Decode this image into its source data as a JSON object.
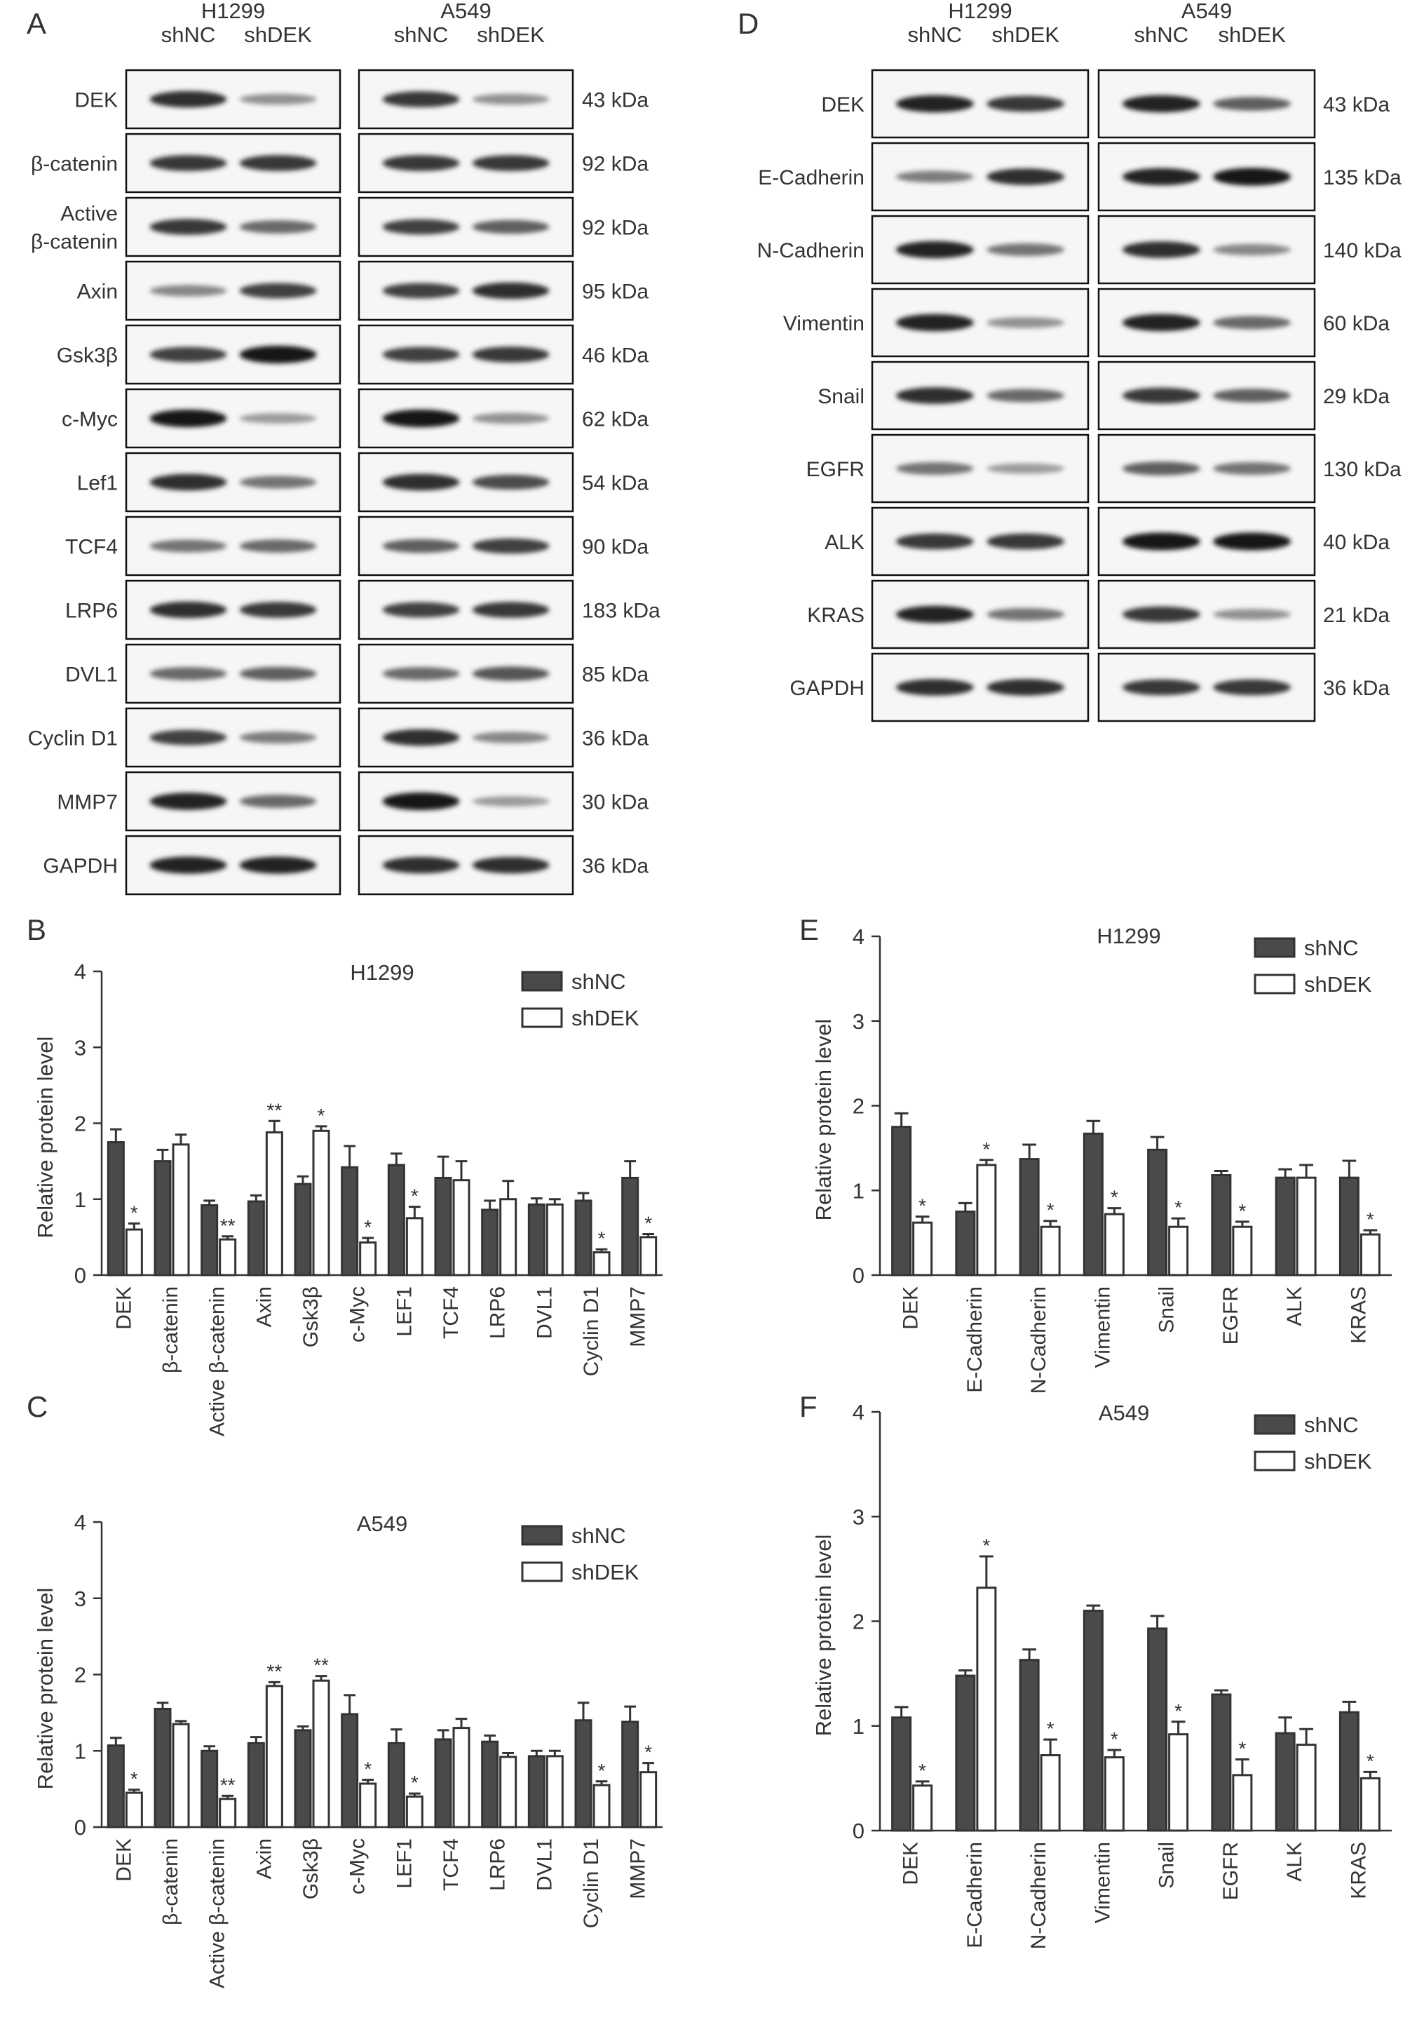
{
  "panel_letters": [
    "A",
    "B",
    "C",
    "D",
    "E",
    "F"
  ],
  "blot_A": {
    "cell_lines": [
      "H1299",
      "A549"
    ],
    "lanes": [
      "shNC",
      "shDEK"
    ],
    "proteins": [
      {
        "label": "DEK",
        "mw": "43 kDa",
        "bands": [
          0.85,
          0.35,
          0.8,
          0.35
        ]
      },
      {
        "label": "β-catenin",
        "mw": "92 kDa",
        "bands": [
          0.8,
          0.8,
          0.8,
          0.8
        ]
      },
      {
        "label": "Active\nβ-catenin",
        "mw": "92 kDa",
        "bands": [
          0.8,
          0.55,
          0.75,
          0.6
        ]
      },
      {
        "label": "Axin",
        "mw": "95 kDa",
        "bands": [
          0.4,
          0.75,
          0.75,
          0.85
        ]
      },
      {
        "label": "Gsk3β",
        "mw": "46 kDa",
        "bands": [
          0.75,
          0.95,
          0.75,
          0.8
        ]
      },
      {
        "label": "c-Myc",
        "mw": "62 kDa",
        "bands": [
          0.95,
          0.3,
          0.95,
          0.35
        ]
      },
      {
        "label": "Lef1",
        "mw": "54 kDa",
        "bands": [
          0.85,
          0.5,
          0.85,
          0.7
        ]
      },
      {
        "label": "TCF4",
        "mw": "90 kDa",
        "bands": [
          0.5,
          0.55,
          0.6,
          0.75
        ]
      },
      {
        "label": "LRP6",
        "mw": "183 kDa",
        "bands": [
          0.85,
          0.8,
          0.75,
          0.8
        ]
      },
      {
        "label": "DVL1",
        "mw": "85 kDa",
        "bands": [
          0.55,
          0.6,
          0.55,
          0.65
        ]
      },
      {
        "label": "Cyclin D1",
        "mw": "36 kDa",
        "bands": [
          0.75,
          0.45,
          0.85,
          0.4
        ]
      },
      {
        "label": "MMP7",
        "mw": "30 kDa",
        "bands": [
          0.9,
          0.55,
          0.95,
          0.3
        ]
      },
      {
        "label": "GAPDH",
        "mw": "36 kDa",
        "bands": [
          0.9,
          0.9,
          0.85,
          0.85
        ]
      }
    ]
  },
  "blot_D": {
    "cell_lines": [
      "H1299",
      "A549"
    ],
    "lanes": [
      "shNC",
      "shDEK"
    ],
    "proteins": [
      {
        "label": "DEK",
        "mw": "43 kDa",
        "bands": [
          0.9,
          0.8,
          0.9,
          0.6
        ]
      },
      {
        "label": "E-Cadherin",
        "mw": "135 kDa",
        "bands": [
          0.45,
          0.85,
          0.9,
          0.95
        ]
      },
      {
        "label": "N-Cadherin",
        "mw": "140 kDa",
        "bands": [
          0.9,
          0.5,
          0.85,
          0.4
        ]
      },
      {
        "label": "Vimentin",
        "mw": "60 kDa",
        "bands": [
          0.9,
          0.35,
          0.9,
          0.55
        ]
      },
      {
        "label": "Snail",
        "mw": "29 kDa",
        "bands": [
          0.85,
          0.55,
          0.8,
          0.6
        ]
      },
      {
        "label": "EGFR",
        "mw": "130 kDa",
        "bands": [
          0.5,
          0.3,
          0.6,
          0.5
        ]
      },
      {
        "label": "ALK",
        "mw": "40 kDa",
        "bands": [
          0.8,
          0.8,
          0.95,
          0.95
        ]
      },
      {
        "label": "KRAS",
        "mw": "21 kDa",
        "bands": [
          0.9,
          0.5,
          0.8,
          0.35
        ]
      },
      {
        "label": "GAPDH",
        "mw": "36 kDa",
        "bands": [
          0.85,
          0.85,
          0.8,
          0.8
        ]
      }
    ]
  },
  "legend": [
    "shNC",
    "shDEK"
  ],
  "colors": {
    "shNC": "#4a4a4a",
    "shDEK": "#ffffff",
    "stroke": "#333333"
  },
  "chart_data": [
    {
      "panel": "B",
      "type": "bar",
      "title": "H1299",
      "ylabel": "Relative protein level",
      "ylim": [
        0,
        4
      ],
      "yticks": [
        0,
        1,
        2,
        3,
        4
      ],
      "categories": [
        "DEK",
        "β-catenin",
        "Active β-catenin",
        "Axin",
        "Gsk3β",
        "c-Myc",
        "LEF1",
        "TCF4",
        "LRP6",
        "DVL1",
        "Cyclin D1",
        "MMP7"
      ],
      "series": [
        {
          "name": "shNC",
          "values": [
            1.75,
            1.5,
            0.92,
            0.97,
            1.2,
            1.42,
            1.45,
            1.28,
            0.86,
            0.93,
            0.98,
            1.28
          ],
          "errors": [
            0.17,
            0.15,
            0.06,
            0.08,
            0.1,
            0.28,
            0.15,
            0.28,
            0.12,
            0.08,
            0.1,
            0.22
          ]
        },
        {
          "name": "shDEK",
          "values": [
            0.6,
            1.72,
            0.47,
            1.88,
            1.9,
            0.43,
            0.75,
            1.25,
            1.0,
            0.93,
            0.3,
            0.5
          ],
          "errors": [
            0.08,
            0.13,
            0.04,
            0.15,
            0.06,
            0.06,
            0.15,
            0.25,
            0.24,
            0.07,
            0.04,
            0.04
          ]
        }
      ],
      "significance": [
        "*",
        "",
        "**",
        "**",
        "*",
        "*",
        "*",
        "",
        "",
        "",
        "*",
        "*"
      ]
    },
    {
      "panel": "C",
      "type": "bar",
      "title": "A549",
      "ylabel": "Relative protein level",
      "ylim": [
        0,
        4
      ],
      "yticks": [
        0,
        1,
        2,
        3,
        4
      ],
      "categories": [
        "DEK",
        "β-catenin",
        "Active β-catenin",
        "Axin",
        "Gsk3β",
        "c-Myc",
        "LEF1",
        "TCF4",
        "LRP6",
        "DVL1",
        "Cyclin D1",
        "MMP7"
      ],
      "series": [
        {
          "name": "shNC",
          "values": [
            1.07,
            1.55,
            1.0,
            1.1,
            1.27,
            1.48,
            1.1,
            1.15,
            1.12,
            0.93,
            1.4,
            1.38
          ],
          "errors": [
            0.1,
            0.08,
            0.06,
            0.08,
            0.05,
            0.25,
            0.18,
            0.12,
            0.08,
            0.07,
            0.23,
            0.2
          ]
        },
        {
          "name": "shDEK",
          "values": [
            0.45,
            1.35,
            0.37,
            1.85,
            1.92,
            0.57,
            0.4,
            1.3,
            0.92,
            0.93,
            0.55,
            0.72
          ],
          "errors": [
            0.04,
            0.04,
            0.04,
            0.05,
            0.06,
            0.05,
            0.04,
            0.12,
            0.05,
            0.07,
            0.05,
            0.12
          ]
        }
      ],
      "significance": [
        "*",
        "",
        "**",
        "**",
        "**",
        "*",
        "*",
        "",
        "",
        "",
        "*",
        "*"
      ]
    },
    {
      "panel": "E",
      "type": "bar",
      "title": "H1299",
      "ylabel": "Relative protein level",
      "ylim": [
        0,
        4
      ],
      "yticks": [
        0,
        1,
        2,
        3,
        4
      ],
      "categories": [
        "DEK",
        "E-Cadherin",
        "N-Cadherin",
        "Vimentin",
        "Snail",
        "EGFR",
        "ALK",
        "KRAS"
      ],
      "series": [
        {
          "name": "shNC",
          "values": [
            1.75,
            0.75,
            1.37,
            1.67,
            1.48,
            1.18,
            1.15,
            1.15
          ],
          "errors": [
            0.16,
            0.1,
            0.17,
            0.15,
            0.15,
            0.05,
            0.1,
            0.2
          ]
        },
        {
          "name": "shDEK",
          "values": [
            0.62,
            1.3,
            0.57,
            0.72,
            0.57,
            0.57,
            1.15,
            0.48
          ],
          "errors": [
            0.07,
            0.06,
            0.07,
            0.07,
            0.1,
            0.06,
            0.15,
            0.05
          ]
        }
      ],
      "significance": [
        "*",
        "*",
        "*",
        "*",
        "*",
        "*",
        "",
        "*"
      ]
    },
    {
      "panel": "F",
      "type": "bar",
      "title": "A549",
      "ylabel": "Relative protein level",
      "ylim": [
        0,
        4
      ],
      "yticks": [
        0,
        1,
        2,
        3,
        4
      ],
      "categories": [
        "DEK",
        "E-Cadherin",
        "N-Cadherin",
        "Vimentin",
        "Snail",
        "EGFR",
        "ALK",
        "KRAS"
      ],
      "series": [
        {
          "name": "shNC",
          "values": [
            1.08,
            1.48,
            1.63,
            2.1,
            1.93,
            1.3,
            0.93,
            1.13
          ],
          "errors": [
            0.1,
            0.05,
            0.1,
            0.05,
            0.12,
            0.04,
            0.15,
            0.1
          ]
        },
        {
          "name": "shDEK",
          "values": [
            0.43,
            2.32,
            0.72,
            0.7,
            0.92,
            0.53,
            0.82,
            0.5
          ],
          "errors": [
            0.04,
            0.3,
            0.15,
            0.07,
            0.12,
            0.15,
            0.15,
            0.06
          ]
        }
      ],
      "significance": [
        "*",
        "*",
        "*",
        "*",
        "*",
        "*",
        "",
        "*"
      ]
    }
  ]
}
